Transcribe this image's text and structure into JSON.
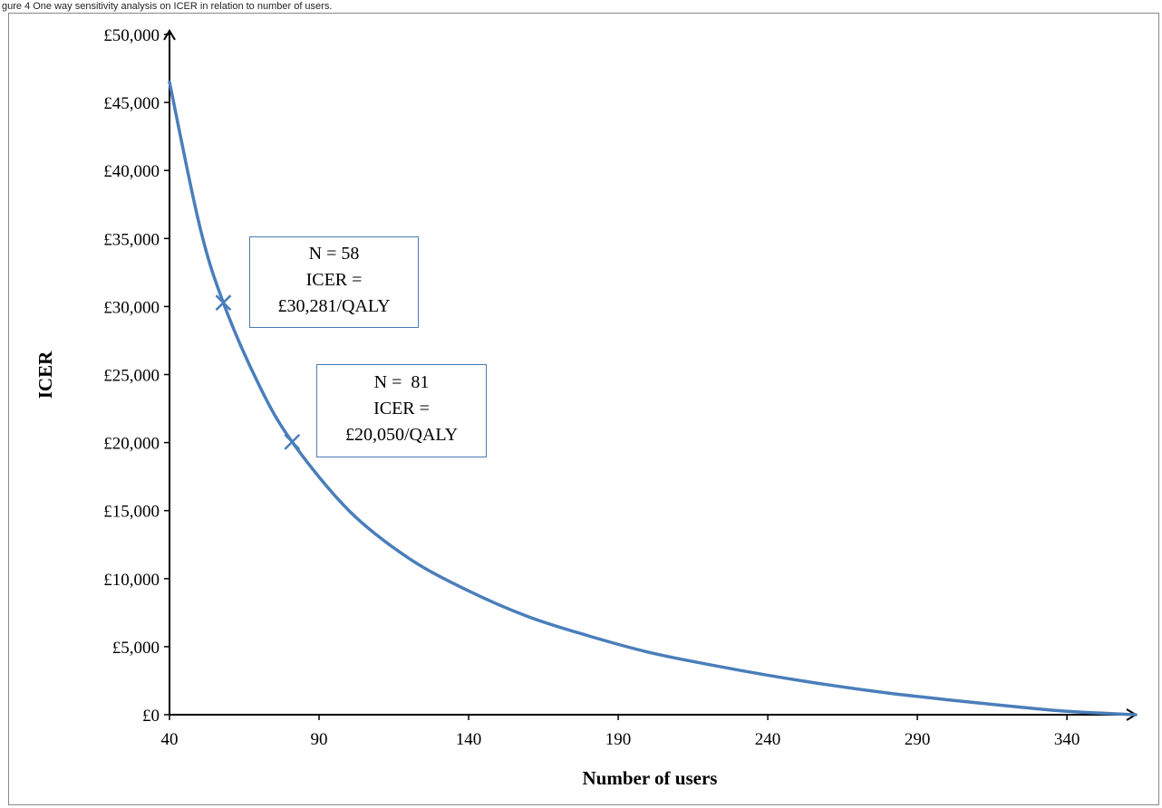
{
  "caption": "gure 4 One way sensitivity analysis on ICER in relation to number of users.",
  "colors": {
    "line": "#4a7ebb",
    "axis": "#000000",
    "box_border": "#4a7ab0"
  },
  "chart_data": {
    "type": "line",
    "xlabel": "Number of users",
    "ylabel": "ICER",
    "xlim": [
      40,
      363
    ],
    "ylim": [
      0,
      50000
    ],
    "x_ticks": [
      "40",
      "90",
      "140",
      "190",
      "240",
      "290",
      "340"
    ],
    "x_tick_values": [
      40,
      90,
      140,
      190,
      240,
      290,
      340
    ],
    "y_ticks": [
      "£0",
      "£5,000",
      "£10,000",
      "£15,000",
      "£20,000",
      "£25,000",
      "£30,000",
      "£35,000",
      "£40,000",
      "£45,000",
      "£50,000"
    ],
    "y_tick_values": [
      0,
      5000,
      10000,
      15000,
      20000,
      25000,
      30000,
      35000,
      40000,
      45000,
      50000
    ],
    "series": [
      {
        "x": [
          40,
          50,
          58,
          70,
          81,
          100,
          120,
          140,
          160,
          180,
          200,
          220,
          240,
          260,
          280,
          300,
          320,
          340,
          363
        ],
        "y": [
          46500,
          36000,
          30281,
          24200,
          20050,
          15000,
          11500,
          9100,
          7200,
          5800,
          4600,
          3700,
          2900,
          2200,
          1600,
          1100,
          650,
          250,
          0
        ]
      }
    ],
    "markers": [
      {
        "x": 58,
        "y": 30281
      },
      {
        "x": 81,
        "y": 20050
      }
    ],
    "annotations": [
      {
        "lines": [
          "N = 58",
          "ICER =",
          "£30,281/QALY"
        ]
      },
      {
        "lines": [
          "N =  81",
          "ICER =",
          "£20,050/QALY"
        ]
      }
    ]
  }
}
